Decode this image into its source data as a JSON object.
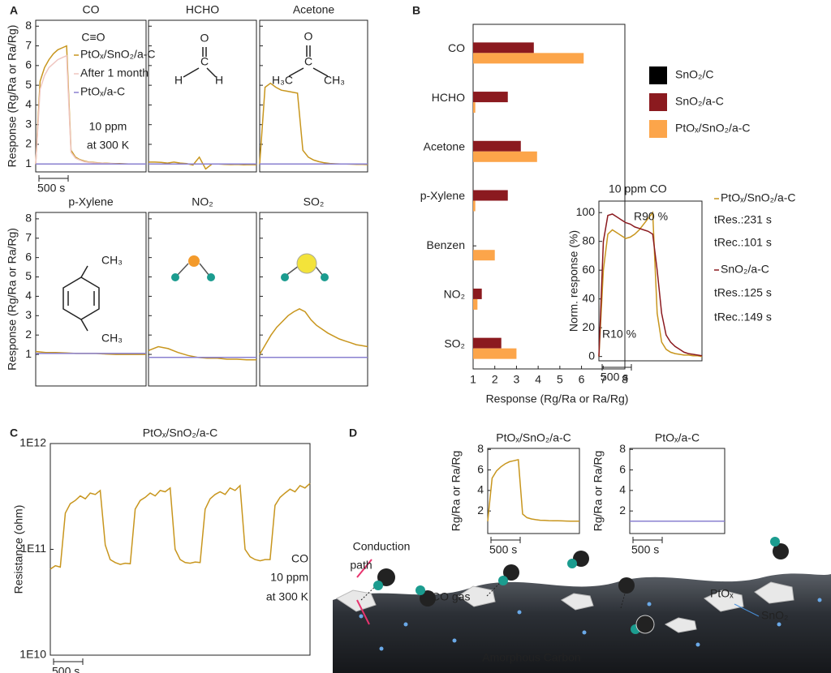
{
  "panels": [
    "A",
    "B",
    "C",
    "D"
  ],
  "chart_data": [
    {
      "type": "line",
      "title": "CO",
      "ylabel": "Response (Rg/Ra or Ra/Rg)",
      "ylim": [
        0.6,
        8.3
      ],
      "yticks": [
        1,
        2,
        3,
        4,
        5,
        6,
        7,
        8
      ],
      "tick_labels": true,
      "scale_bar": "500 s",
      "series": [
        {
          "name": "PtOₓ/SnO₂/a-C",
          "color": "#c8961e",
          "values": [
            1,
            5.2,
            5.9,
            6.3,
            6.6,
            6.8,
            6.9,
            7.0,
            1.7,
            1.35,
            1.22,
            1.15,
            1.1,
            1.08,
            1.06,
            1.05,
            1.04,
            1.03,
            1.02,
            1.02,
            1.01,
            1.0,
            1.0,
            1.0,
            1.0,
            1.0
          ]
        },
        {
          "name": "After 1 month",
          "color": "#efc6c0",
          "values": [
            1,
            4.8,
            5.5,
            5.9,
            6.1,
            6.3,
            6.4,
            6.5,
            1.6,
            1.3,
            1.2,
            1.12,
            1.08,
            1.06,
            1.05,
            1.04,
            1.03,
            1.02,
            1.01,
            1.0,
            1.0,
            1.0,
            1.0,
            1.0,
            1.0,
            1.0
          ]
        },
        {
          "name": "PtOₓ/a-C",
          "color": "#8a80d0",
          "values": [
            1,
            1
          ]
        }
      ],
      "annotations": [
        "C≡O",
        "10 ppm",
        "at 300 K"
      ]
    },
    {
      "type": "line",
      "title": "HCHO",
      "ylim": [
        0.6,
        8.3
      ],
      "yticks": [
        1,
        2,
        3,
        4,
        5,
        6,
        7,
        8
      ],
      "tick_labels": false,
      "series": [
        {
          "color": "#c8961e",
          "values": [
            1.1,
            1.1,
            1.08,
            1.05,
            1.1,
            1.05,
            1.02,
            0.95,
            1.35,
            0.75,
            1.0,
            1.0,
            0.98,
            0.97,
            0.98,
            0.96,
            0.97,
            0.96
          ]
        },
        {
          "color": "#8a80d0",
          "values": [
            1,
            1
          ]
        }
      ],
      "annotations": [
        "O",
        "C",
        "H",
        "H"
      ]
    },
    {
      "type": "line",
      "title": "Acetone",
      "ylim": [
        0.6,
        8.3
      ],
      "yticks": [
        1,
        2,
        3,
        4,
        5,
        6,
        7,
        8
      ],
      "tick_labels": false,
      "series": [
        {
          "color": "#c8961e",
          "values": [
            1,
            4.9,
            5.1,
            4.9,
            4.75,
            4.7,
            4.65,
            4.6,
            1.7,
            1.35,
            1.2,
            1.12,
            1.06,
            1.03,
            1.01,
            1.0,
            1.0,
            0.99,
            0.98,
            0.98,
            0.97
          ]
        },
        {
          "color": "#8a80d0",
          "values": [
            1,
            1
          ]
        }
      ],
      "annotations": [
        "O",
        "C",
        "H₃C",
        "CH₃"
      ]
    },
    {
      "type": "line",
      "title": "p-Xylene",
      "ylabel": "Response (Rg/Ra or Ra/Rg)",
      "ylim": [
        -0.63,
        8.33
      ],
      "yticks": [
        1,
        2,
        3,
        4,
        5,
        6,
        7,
        8
      ],
      "tick_labels": true,
      "series": [
        {
          "color": "#c8961e",
          "values": [
            1.15,
            1.1,
            1.1,
            1.08,
            1.05,
            1.05,
            1.05,
            1.02,
            1.0,
            1.0,
            1.0,
            1.0
          ]
        },
        {
          "color": "#8a80d0",
          "values": [
            1.05,
            1.05
          ]
        }
      ],
      "annotations": [
        "CH₃",
        "CH₃"
      ]
    },
    {
      "type": "line",
      "title": "NO₂",
      "ylim": [
        -0.63,
        8.33
      ],
      "yticks": [
        1,
        2,
        3,
        4,
        5,
        6,
        7,
        8
      ],
      "tick_labels": false,
      "series": [
        {
          "color": "#c8961e",
          "values": [
            1.2,
            1.4,
            1.3,
            1.1,
            0.95,
            0.85,
            0.8,
            0.8,
            0.75,
            0.75,
            0.72,
            0.72
          ]
        },
        {
          "color": "#8a80d0",
          "values": [
            0.85,
            0.85
          ]
        }
      ],
      "annotations": []
    },
    {
      "type": "line",
      "title": "SO₂",
      "ylim": [
        -0.63,
        8.33
      ],
      "yticks": [
        1,
        2,
        3,
        4,
        5,
        6,
        7,
        8
      ],
      "tick_labels": false,
      "series": [
        {
          "color": "#c8961e",
          "values": [
            1,
            1.5,
            2.0,
            2.4,
            2.7,
            3.0,
            3.2,
            3.35,
            3.2,
            2.8,
            2.5,
            2.3,
            2.1,
            1.95,
            1.8,
            1.7,
            1.6,
            1.5,
            1.45,
            1.4
          ]
        },
        {
          "color": "#8a80d0",
          "values": [
            0.85,
            0.85
          ]
        }
      ],
      "annotations": []
    },
    {
      "type": "bar",
      "orientation": "horizontal",
      "xlabel": "Response (Rg/Ra or Ra/Rg)",
      "xlim": [
        1,
        8
      ],
      "xticks": [
        1,
        2,
        3,
        4,
        5,
        6,
        7,
        8
      ],
      "legend": "right",
      "categories": [
        "CO",
        "HCHO",
        "Acetone",
        "p-Xylene",
        "Benzen",
        "NO₂",
        "SO₂"
      ],
      "series": [
        {
          "name": "SnO₂/C",
          "color": "#000000",
          "values": [
            1,
            1,
            1,
            1,
            1,
            1,
            1
          ]
        },
        {
          "name": "SnO₂/a-C",
          "color": "#8b1a1f",
          "values": [
            3.8,
            2.6,
            3.2,
            2.6,
            1,
            1.4,
            2.3
          ]
        },
        {
          "name": "PtOₓ/SnO₂/a-C",
          "color": "#fca54a",
          "values": [
            6.1,
            1.1,
            3.95,
            1.1,
            2.0,
            1.2,
            3.0
          ]
        }
      ]
    },
    {
      "type": "line",
      "title": "10 ppm CO",
      "ylabel": "Norm. response (%)",
      "ylim": [
        -3,
        108
      ],
      "yticks": [
        0,
        20,
        40,
        60,
        80,
        100
      ],
      "tick_labels": true,
      "scale_bar": "500 s",
      "series": [
        {
          "name": "PtOₓ/SnO₂/a-C",
          "color": "#c8961e",
          "values": [
            0,
            60,
            85,
            88,
            86,
            84,
            82,
            83,
            85,
            88,
            92,
            96,
            100,
            30,
            10,
            5,
            3,
            2,
            1.5,
            1,
            1,
            0.5,
            0.5,
            0
          ]
        },
        {
          "name": "SnO₂/a-C",
          "color": "#8b1a1f",
          "values": [
            0,
            80,
            98,
            99,
            97,
            95,
            93,
            92,
            90,
            89,
            88,
            87,
            85,
            60,
            30,
            15,
            10,
            7,
            5,
            3,
            2,
            1.5,
            1,
            0.5
          ]
        }
      ],
      "annotations": [
        "R90 %",
        "R10 %",
        "tRes.:231 s",
        "tRec.:101 s",
        "tRes.:125 s",
        "tRec.:149 s"
      ]
    },
    {
      "type": "line",
      "log_scale": true,
      "title": "PtOₓ/SnO₂/a-C",
      "ylabel": "Resistance (ohm)",
      "ylim": [
        10000000000.0,
        1000000000000.0
      ],
      "yticks": [
        {
          "value": 10000000000.0,
          "label": "1E10"
        },
        {
          "value": 100000000000.0,
          "label": "1E11"
        },
        {
          "value": 1000000000000.0,
          "label": "1E12"
        }
      ],
      "tick_labels": true,
      "scale_bar": "500 s",
      "series": [
        {
          "color": "#c8961e",
          "values": [
            65000000000.0,
            70000000000.0,
            68000000000.0,
            220000000000.0,
            270000000000.0,
            290000000000.0,
            320000000000.0,
            300000000000.0,
            340000000000.0,
            330000000000.0,
            360000000000.0,
            110000000000.0,
            80000000000.0,
            75000000000.0,
            72000000000.0,
            74000000000.0,
            73000000000.0,
            240000000000.0,
            290000000000.0,
            310000000000.0,
            340000000000.0,
            320000000000.0,
            360000000000.0,
            350000000000.0,
            380000000000.0,
            100000000000.0,
            80000000000.0,
            75000000000.0,
            74000000000.0,
            76000000000.0,
            75000000000.0,
            240000000000.0,
            300000000000.0,
            330000000000.0,
            350000000000.0,
            330000000000.0,
            380000000000.0,
            360000000000.0,
            400000000000.0,
            100000000000.0,
            85000000000.0,
            80000000000.0,
            78000000000.0,
            80000000000.0,
            80000000000.0,
            260000000000.0,
            310000000000.0,
            340000000000.0,
            370000000000.0,
            350000000000.0,
            400000000000.0,
            380000000000.0,
            420000000000.0
          ]
        }
      ],
      "annotations": [
        "CO",
        "10 ppm",
        "at 300 K"
      ]
    },
    {
      "type": "line",
      "title": "PtOₓ/SnO₂/a-C",
      "ylabel": "Rg/Ra or Ra/Rg",
      "ylim": [
        -0.2,
        8.1
      ],
      "yticks": [
        2,
        4,
        6,
        8
      ],
      "tick_labels": true,
      "scale_bar": "500 s",
      "series": [
        {
          "color": "#c8961e",
          "values": [
            1,
            5.2,
            5.9,
            6.3,
            6.6,
            6.8,
            6.9,
            7.0,
            1.7,
            1.35,
            1.22,
            1.15,
            1.1,
            1.08,
            1.06,
            1.05,
            1.04,
            1.03,
            1.02,
            1.01,
            1.0,
            1.0
          ]
        }
      ],
      "annotations": []
    },
    {
      "type": "line",
      "title": "PtOₓ/a-C",
      "ylabel": "Rg/Ra or Ra/Rg",
      "ylim": [
        -0.2,
        8.1
      ],
      "yticks": [
        2,
        4,
        6,
        8
      ],
      "tick_labels": true,
      "scale_bar": "500 s",
      "series": [
        {
          "color": "#8a80d0",
          "values": [
            1,
            1
          ]
        }
      ],
      "annotations": []
    }
  ],
  "illustration": {
    "labels": [
      "Conduction",
      "path",
      "CO gas",
      "PtOₓ",
      "SnO₂",
      "Amorphous Carbon"
    ]
  }
}
